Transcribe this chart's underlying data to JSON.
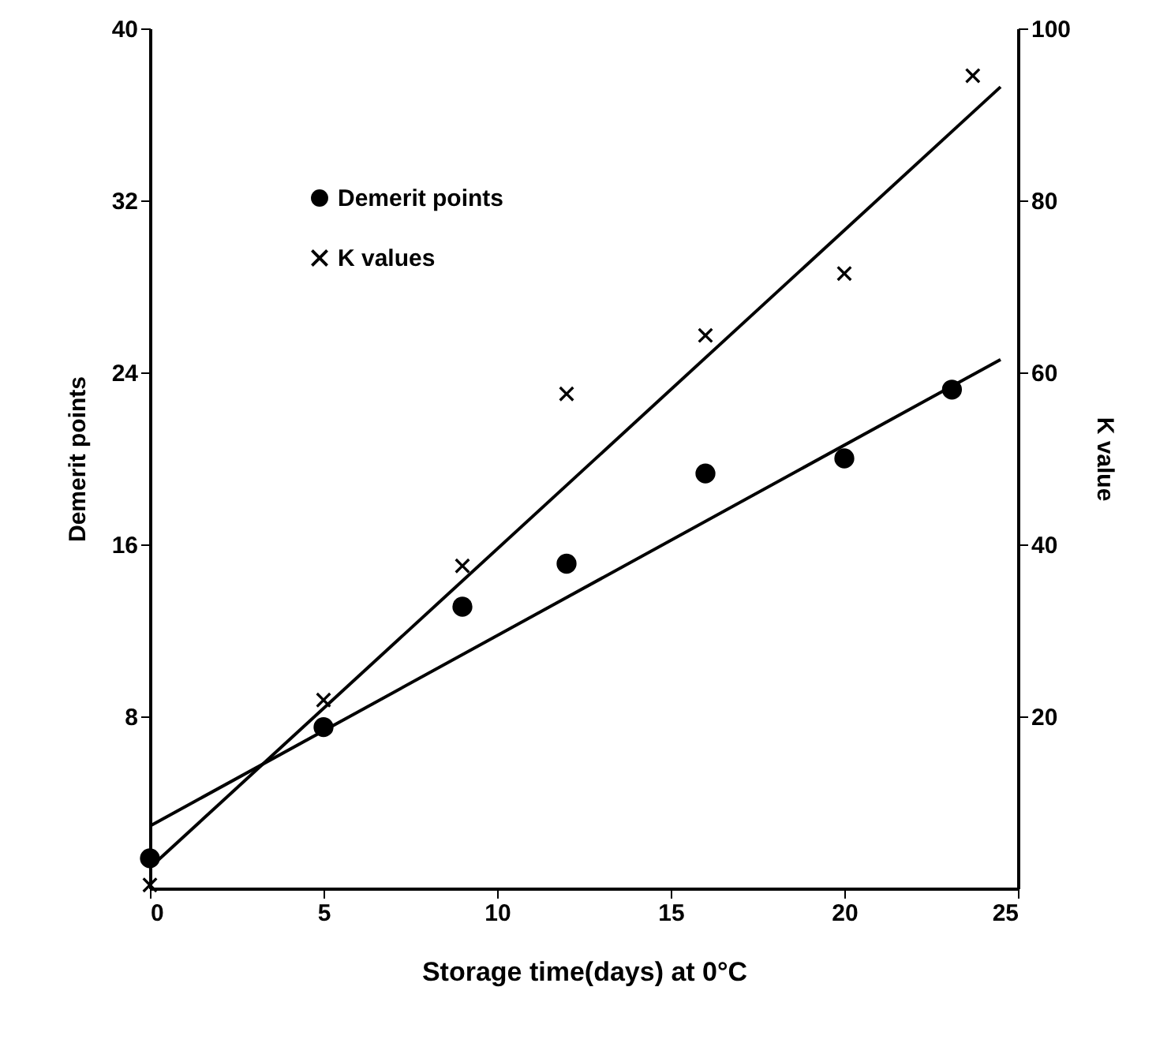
{
  "chart_data": {
    "type": "scatter",
    "xlabel": "Storage time(days) at 0°C",
    "ylabel": "Demerit points",
    "y2label": "K value",
    "x": [
      0,
      5,
      9,
      12,
      16,
      20,
      23.1
    ],
    "xlim": [
      0,
      25
    ],
    "xticks": [
      0,
      5,
      10,
      15,
      20,
      25
    ],
    "ylim": [
      0,
      40
    ],
    "yticks": [
      8,
      16,
      24,
      32,
      40
    ],
    "y2lim": [
      0,
      100
    ],
    "y2ticks": [
      20,
      40,
      60,
      80,
      100
    ],
    "grid": false,
    "legend": "top left",
    "series": [
      {
        "name": "Demerit points",
        "marker": "circle",
        "color": "#000000",
        "values": [
          1.4,
          7.5,
          13.1,
          15.1,
          19.3,
          20,
          23.2
        ]
      },
      {
        "name": "K values",
        "marker": "cross",
        "axis": "y2",
        "color": "#000000",
        "x": [
          0,
          5,
          9,
          12,
          16,
          20,
          23.7
        ],
        "values": [
          0.4,
          21.9,
          37.5,
          57.5,
          64.3,
          71.5,
          94.5
        ]
      },
      {
        "type": "line",
        "color": "#000000",
        "x": [
          0,
          24.5
        ],
        "values": [
          2.9,
          24.6
        ]
      },
      {
        "type": "line",
        "axis": "y2",
        "color": "#000000",
        "x": [
          0,
          24.5
        ],
        "values": [
          2.4,
          93.2
        ]
      }
    ]
  }
}
